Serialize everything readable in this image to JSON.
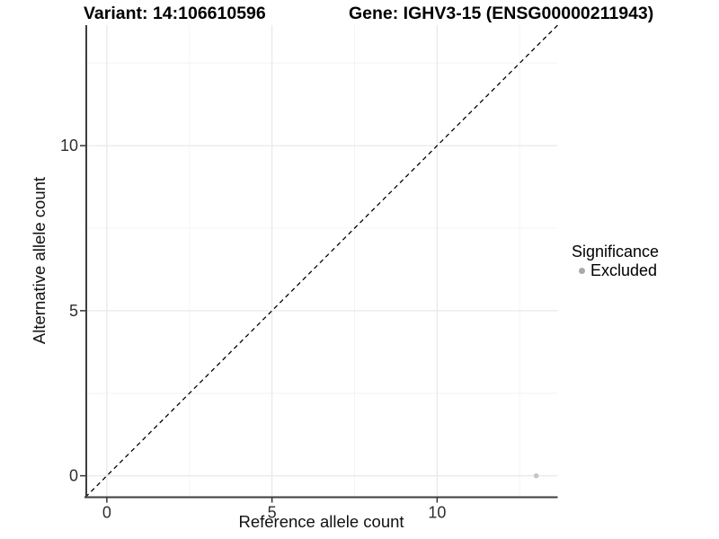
{
  "figure": {
    "kind": "scatter-plot-figure",
    "background": "#ffffff"
  },
  "style": {
    "axis_line_color": "#3c3c3c",
    "tick_color": "#333333",
    "tick_label_color": "#2e2e2e",
    "grid_major_color": "#e8e8e8",
    "grid_minor_color": "#f4f4f4",
    "title_color": "#000000",
    "diagonal_line_color": "#000000",
    "point_color": "#c6c6c6",
    "legend_swatch_color": "#a9a9a9"
  },
  "chart_data": {
    "type": "scatter",
    "titles": {
      "left": "Variant: 14:106610596",
      "right": "Gene: IGHV3-15 (ENSG00000211943)"
    },
    "xlabel": "Reference allele count",
    "ylabel": "Alternative allele count",
    "xlim": [
      -0.65,
      13.65
    ],
    "ylim": [
      -0.65,
      13.65
    ],
    "x_major_ticks": [
      0,
      5,
      10
    ],
    "y_major_ticks": [
      0,
      5,
      10
    ],
    "x_minor_ticks": [
      2.5,
      7.5,
      12.5
    ],
    "y_minor_ticks": [
      2.5,
      7.5,
      12.5
    ],
    "grid": "major+minor",
    "reference_line": {
      "slope": 1,
      "intercept": 0,
      "style": "dashed",
      "color": "#000000"
    },
    "series": [
      {
        "name": "Excluded",
        "color": "#c6c6c6",
        "points": [
          {
            "x": 13,
            "y": 0
          }
        ]
      }
    ],
    "legend": {
      "title": "Significance",
      "position": "right",
      "items": [
        {
          "label": "Excluded",
          "color": "#a9a9a9"
        }
      ]
    }
  }
}
